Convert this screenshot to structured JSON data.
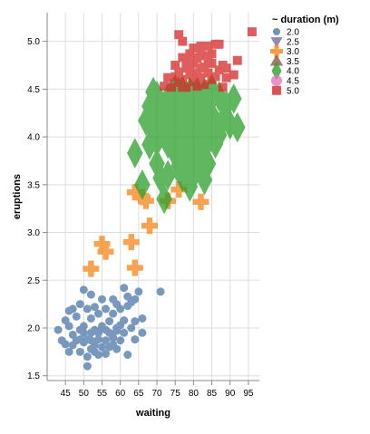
{
  "colors": {
    "blue": "#4c78a8",
    "purple": "#7b6aa8",
    "orange": "#f58518",
    "brown": "#8c564b",
    "green": "#2ca02c",
    "pink": "#e377c2",
    "red": "#d62728"
  },
  "chart_data": {
    "type": "scatter",
    "xlabel": "waiting",
    "ylabel": "eruptions",
    "x_ticks": [
      45,
      50,
      55,
      60,
      65,
      70,
      75,
      80,
      85,
      90,
      95
    ],
    "y_ticks": [
      "1.5",
      "2.0",
      "2.5",
      "3.0",
      "3.5",
      "4.0",
      "4.5",
      "5.0"
    ],
    "xlim": [
      40,
      98
    ],
    "ylim": [
      1.45,
      5.3
    ],
    "grid": true,
    "legend": {
      "title": "~ duration (m)",
      "placement": "top-right",
      "items": [
        {
          "label": "2.0",
          "shape": "circle",
          "color": "#4c78a8"
        },
        {
          "label": "2.5",
          "shape": "triangle-down",
          "color": "#7b6aa8"
        },
        {
          "label": "3.0",
          "shape": "cross",
          "color": "#f58518"
        },
        {
          "label": "3.5",
          "shape": "triangle-up",
          "color": "#8c564b"
        },
        {
          "label": "4.0",
          "shape": "diamond",
          "color": "#2ca02c"
        },
        {
          "label": "4.5",
          "shape": "big-circle",
          "color": "#e377c2"
        },
        {
          "label": "5.0",
          "shape": "square",
          "color": "#d62728"
        }
      ]
    },
    "series": [
      {
        "duration": "2.0",
        "shape": "circle",
        "color": "#4c78a8",
        "points": [
          [
            43,
            1.98
          ],
          [
            44,
            1.87
          ],
          [
            45,
            2.08
          ],
          [
            45,
            1.83
          ],
          [
            46,
            2.02
          ],
          [
            46,
            1.75
          ],
          [
            46,
            2.18
          ],
          [
            47,
            1.93
          ],
          [
            47,
            2.2
          ],
          [
            47,
            1.82
          ],
          [
            48,
            1.87
          ],
          [
            48,
            2.12
          ],
          [
            49,
            1.88
          ],
          [
            49,
            1.98
          ],
          [
            49,
            2.25
          ],
          [
            49,
            1.75
          ],
          [
            50,
            2.4
          ],
          [
            50,
            2.02
          ],
          [
            50,
            1.85
          ],
          [
            50,
            1.95
          ],
          [
            51,
            2.2
          ],
          [
            51,
            1.88
          ],
          [
            51,
            1.6
          ],
          [
            51,
            1.7
          ],
          [
            52,
            2.1
          ],
          [
            52,
            1.87
          ],
          [
            52,
            1.78
          ],
          [
            52,
            2.35
          ],
          [
            52,
            1.95
          ],
          [
            53,
            1.98
          ],
          [
            53,
            1.75
          ],
          [
            53,
            2.22
          ],
          [
            53,
            1.82
          ],
          [
            54,
            1.95
          ],
          [
            54,
            2.15
          ],
          [
            54,
            1.88
          ],
          [
            54,
            1.72
          ],
          [
            55,
            2.0
          ],
          [
            55,
            1.8
          ],
          [
            55,
            2.02
          ],
          [
            55,
            2.3
          ],
          [
            56,
            1.98
          ],
          [
            56,
            1.87
          ],
          [
            56,
            2.2
          ],
          [
            56,
            1.73
          ],
          [
            57,
            1.95
          ],
          [
            57,
            2.07
          ],
          [
            57,
            1.8
          ],
          [
            58,
            1.9
          ],
          [
            58,
            2.15
          ],
          [
            58,
            2.3
          ],
          [
            58,
            1.83
          ],
          [
            59,
            2.0
          ],
          [
            59,
            1.97
          ],
          [
            59,
            2.25
          ],
          [
            59,
            1.78
          ],
          [
            60,
            2.2
          ],
          [
            60,
            1.87
          ],
          [
            60,
            2.03
          ],
          [
            61,
            2.08
          ],
          [
            61,
            2.42
          ],
          [
            61,
            1.95
          ],
          [
            62,
            2.23
          ],
          [
            62,
            1.72
          ],
          [
            62,
            2.33
          ],
          [
            63,
            2.27
          ],
          [
            63,
            2.0
          ],
          [
            64,
            2.3
          ],
          [
            64,
            1.88
          ],
          [
            64,
            2.07
          ],
          [
            65,
            2.38
          ],
          [
            66,
            1.95
          ],
          [
            66,
            2.1
          ],
          [
            71,
            2.38
          ]
        ]
      },
      {
        "duration": "3.0",
        "shape": "cross",
        "color": "#f58518",
        "points": [
          [
            52,
            2.62
          ],
          [
            55,
            2.88
          ],
          [
            56,
            2.8
          ],
          [
            63,
            2.9
          ],
          [
            64,
            3.42
          ],
          [
            64,
            2.63
          ],
          [
            66,
            3.37
          ],
          [
            67,
            3.33
          ],
          [
            68,
            3.07
          ],
          [
            73,
            3.33
          ],
          [
            76,
            3.45
          ],
          [
            82,
            3.32
          ]
        ]
      },
      {
        "duration": "4.0",
        "shape": "diamond",
        "color": "#2ca02c",
        "points": [
          [
            64,
            3.83
          ],
          [
            66,
            3.5
          ],
          [
            67,
            4.17
          ],
          [
            68,
            3.92
          ],
          [
            68,
            4.32
          ],
          [
            69,
            4.07
          ],
          [
            69,
            4.47
          ],
          [
            70,
            3.95
          ],
          [
            70,
            4.22
          ],
          [
            70,
            4.43
          ],
          [
            70,
            3.72
          ],
          [
            71,
            4.03
          ],
          [
            71,
            3.57
          ],
          [
            71,
            4.33
          ],
          [
            72,
            4.28
          ],
          [
            72,
            4.05
          ],
          [
            72,
            4.18
          ],
          [
            72,
            3.35
          ],
          [
            73,
            3.6
          ],
          [
            73,
            4.2
          ],
          [
            73,
            4.4
          ],
          [
            73,
            3.93
          ],
          [
            74,
            4.0
          ],
          [
            74,
            4.25
          ],
          [
            74,
            4.45
          ],
          [
            75,
            4.13
          ],
          [
            75,
            4.32
          ],
          [
            75,
            4.5
          ],
          [
            75,
            3.82
          ],
          [
            76,
            4.07
          ],
          [
            76,
            3.93
          ],
          [
            76,
            4.28
          ],
          [
            76,
            3.7
          ],
          [
            76,
            4.47
          ],
          [
            77,
            4.13
          ],
          [
            77,
            4.3
          ],
          [
            77,
            3.58
          ],
          [
            77,
            3.87
          ],
          [
            77,
            4.48
          ],
          [
            78,
            4.0
          ],
          [
            78,
            4.22
          ],
          [
            78,
            3.8
          ],
          [
            78,
            4.37
          ],
          [
            78,
            3.95
          ],
          [
            78,
            4.1
          ],
          [
            79,
            4.37
          ],
          [
            79,
            4.2
          ],
          [
            79,
            3.75
          ],
          [
            79,
            4.05
          ],
          [
            79,
            3.48
          ],
          [
            79,
            4.47
          ],
          [
            80,
            4.35
          ],
          [
            80,
            4.12
          ],
          [
            80,
            3.9
          ],
          [
            80,
            3.6
          ],
          [
            80,
            4.25
          ],
          [
            80,
            4.42
          ],
          [
            81,
            4.03
          ],
          [
            81,
            4.28
          ],
          [
            81,
            3.67
          ],
          [
            81,
            4.47
          ],
          [
            82,
            4.2
          ],
          [
            82,
            3.98
          ],
          [
            82,
            4.3
          ],
          [
            82,
            3.83
          ],
          [
            83,
            4.1
          ],
          [
            83,
            4.45
          ],
          [
            83,
            4.25
          ],
          [
            83,
            3.55
          ],
          [
            84,
            3.95
          ],
          [
            84,
            4.33
          ],
          [
            84,
            3.72
          ],
          [
            85,
            4.13
          ],
          [
            85,
            4.5
          ],
          [
            85,
            4.23
          ],
          [
            86,
            4.15
          ],
          [
            86,
            3.93
          ],
          [
            86,
            4.05
          ],
          [
            87,
            4.42
          ],
          [
            87,
            4.02
          ],
          [
            88,
            4.17
          ],
          [
            89,
            4.33
          ],
          [
            90,
            4.13
          ],
          [
            91,
            4.4
          ],
          [
            92,
            4.1
          ]
        ]
      },
      {
        "duration": "5.0",
        "shape": "square",
        "color": "#d62728",
        "points": [
          [
            72,
            4.53
          ],
          [
            73,
            4.62
          ],
          [
            74,
            4.52
          ],
          [
            75,
            4.63
          ],
          [
            75,
            4.75
          ],
          [
            76,
            4.68
          ],
          [
            76,
            4.57
          ],
          [
            76,
            5.07
          ],
          [
            77,
            4.6
          ],
          [
            77,
            4.83
          ],
          [
            77,
            5.0
          ],
          [
            77,
            4.52
          ],
          [
            78,
            4.72
          ],
          [
            78,
            4.8
          ],
          [
            78,
            4.52
          ],
          [
            79,
            4.73
          ],
          [
            79,
            4.65
          ],
          [
            79,
            4.87
          ],
          [
            80,
            4.58
          ],
          [
            80,
            4.77
          ],
          [
            80,
            4.83
          ],
          [
            80,
            4.93
          ],
          [
            81,
            4.67
          ],
          [
            81,
            4.53
          ],
          [
            81,
            4.82
          ],
          [
            82,
            4.72
          ],
          [
            82,
            4.62
          ],
          [
            82,
            4.9
          ],
          [
            82,
            4.95
          ],
          [
            83,
            4.73
          ],
          [
            83,
            4.55
          ],
          [
            83,
            4.85
          ],
          [
            84,
            4.8
          ],
          [
            84,
            4.67
          ],
          [
            84,
            4.95
          ],
          [
            85,
            4.6
          ],
          [
            85,
            4.77
          ],
          [
            85,
            4.87
          ],
          [
            86,
            4.97
          ],
          [
            86,
            4.63
          ],
          [
            87,
            4.7
          ],
          [
            87,
            4.97
          ],
          [
            88,
            4.75
          ],
          [
            88,
            4.52
          ],
          [
            89,
            4.72
          ],
          [
            89,
            4.62
          ],
          [
            91,
            4.65
          ],
          [
            92,
            4.8
          ],
          [
            96,
            5.1
          ]
        ]
      }
    ]
  }
}
